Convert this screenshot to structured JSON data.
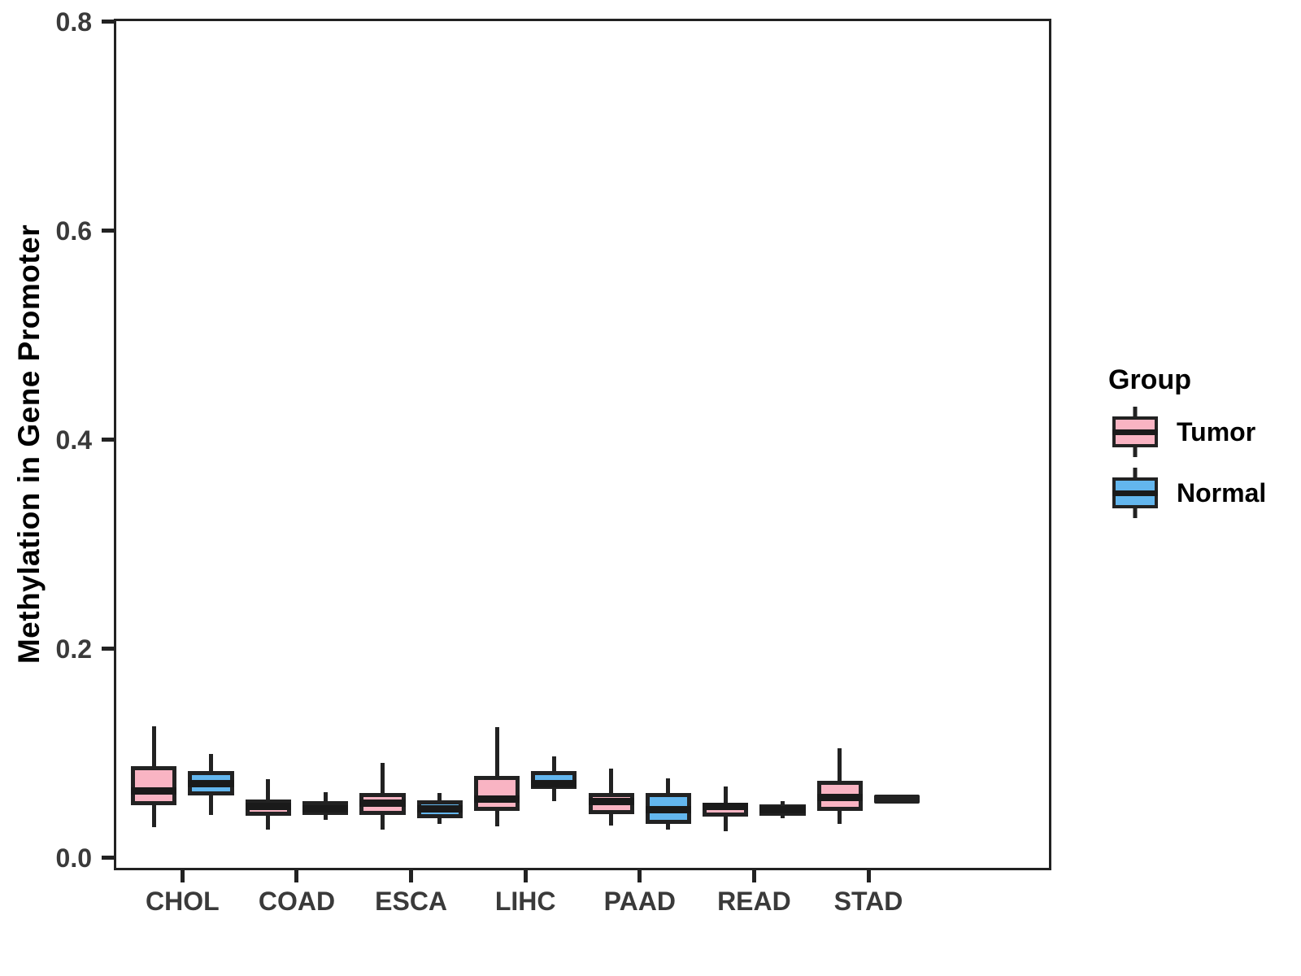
{
  "chart_data": {
    "type": "boxplot",
    "title": "",
    "xlabel": "",
    "ylabel": "Methylation in Gene Promoter",
    "categories": [
      "CHOL",
      "COAD",
      "ESCA",
      "LIHC",
      "PAAD",
      "READ",
      "STAD"
    ],
    "ytick_labels": [
      "0.0",
      "0.2",
      "0.4",
      "0.6",
      "0.8"
    ],
    "ytick_values": [
      0.0,
      0.2,
      0.4,
      0.6,
      0.8
    ],
    "ylim": [
      -0.012,
      0.803
    ],
    "grid": false,
    "legend": {
      "title": "Group",
      "position": "right",
      "items": [
        {
          "label": "Tumor",
          "color": "#F9B4C3"
        },
        {
          "label": "Normal",
          "color": "#63B6EE"
        }
      ]
    },
    "series": [
      {
        "name": "Tumor",
        "color": "#F9B4C3",
        "boxes": [
          {
            "category": "CHOL",
            "min": 0.029,
            "q1": 0.05,
            "median": 0.064,
            "q3": 0.088,
            "max": 0.126
          },
          {
            "category": "COAD",
            "min": 0.027,
            "q1": 0.04,
            "median": 0.049,
            "q3": 0.056,
            "max": 0.075
          },
          {
            "category": "ESCA",
            "min": 0.027,
            "q1": 0.041,
            "median": 0.052,
            "q3": 0.062,
            "max": 0.091
          },
          {
            "category": "LIHC",
            "min": 0.03,
            "q1": 0.045,
            "median": 0.056,
            "q3": 0.078,
            "max": 0.125
          },
          {
            "category": "PAAD",
            "min": 0.031,
            "q1": 0.042,
            "median": 0.054,
            "q3": 0.062,
            "max": 0.085
          },
          {
            "category": "READ",
            "min": 0.025,
            "q1": 0.039,
            "median": 0.049,
            "q3": 0.052,
            "max": 0.068
          },
          {
            "category": "STAD",
            "min": 0.032,
            "q1": 0.045,
            "median": 0.058,
            "q3": 0.074,
            "max": 0.105
          }
        ]
      },
      {
        "name": "Normal",
        "color": "#63B6EE",
        "boxes": [
          {
            "category": "CHOL",
            "min": 0.041,
            "q1": 0.06,
            "median": 0.071,
            "q3": 0.083,
            "max": 0.099
          },
          {
            "category": "COAD",
            "min": 0.036,
            "q1": 0.041,
            "median": 0.047,
            "q3": 0.054,
            "max": 0.063
          },
          {
            "category": "ESCA",
            "min": 0.032,
            "q1": 0.038,
            "median": 0.047,
            "q3": 0.055,
            "max": 0.062
          },
          {
            "category": "LIHC",
            "min": 0.054,
            "q1": 0.066,
            "median": 0.071,
            "q3": 0.083,
            "max": 0.097
          },
          {
            "category": "PAAD",
            "min": 0.027,
            "q1": 0.032,
            "median": 0.046,
            "q3": 0.062,
            "max": 0.076
          },
          {
            "category": "READ",
            "min": 0.038,
            "q1": 0.04,
            "median": 0.046,
            "q3": 0.051,
            "max": 0.054
          },
          {
            "category": "STAD",
            "min": 0.053,
            "q1": 0.053,
            "median": 0.056,
            "q3": 0.059,
            "max": 0.059
          }
        ]
      }
    ],
    "style": {
      "box_border_color": "#222222",
      "median_color": "#1a1a1a",
      "axis_color": "#222222",
      "tick_label_color": "#3a3a3a",
      "background": "#FFFFFF"
    }
  }
}
